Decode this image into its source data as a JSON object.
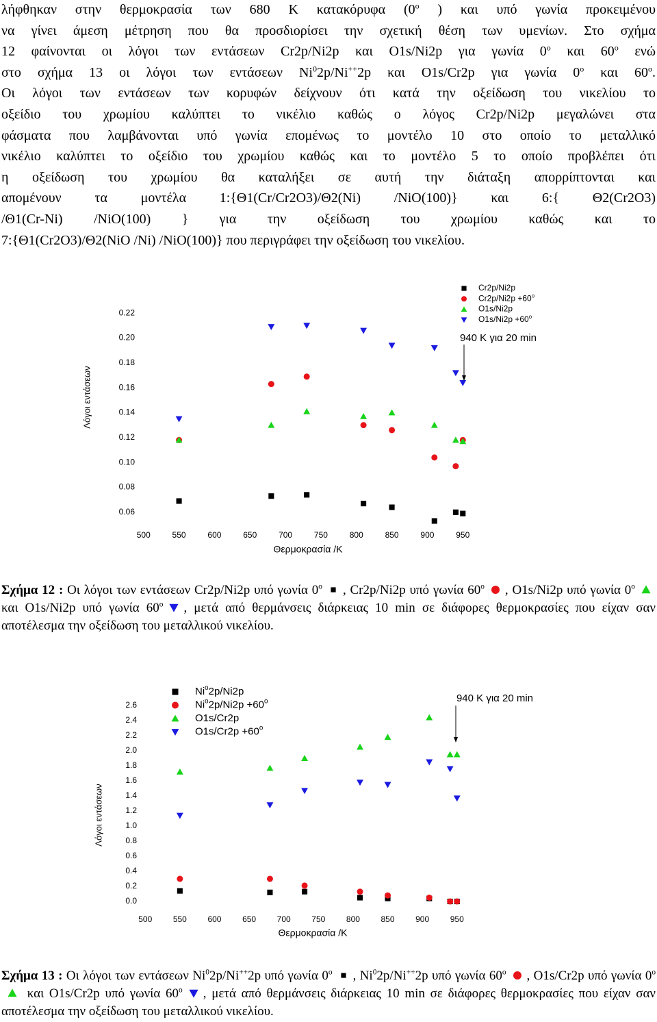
{
  "paragraph": [
    [
      "λήφθηκαν στην θερμοκρασία των 680 K κατακόρυφα (0",
      "o",
      " ) και υπό γωνία προκειμένου"
    ],
    [
      "να γίνει άμεση μέτρηση που θα προσδιορίσει την σχετική θέση των υμενίων. Στο σχήμα"
    ],
    [
      "12 φαίνονται οι λόγοι των εντάσεων Cr2p/Ni2p και O1s/Ni2p για γωνία 0",
      "o",
      " και 60",
      "o",
      " ενώ"
    ],
    [
      "στο σχήμα 13 οι λόγοι των εντάσεων Ni",
      "0",
      "2p/Ni",
      "++",
      "2p και O1s/Cr2p για γωνία 0",
      "o",
      " και 60",
      "o",
      "."
    ],
    [
      "Οι λόγοι των εντάσεων των κορυφών δείχνουν ότι κατά την οξείδωση του νικελίου το"
    ],
    [
      "οξείδιο του χρωμίου καλύπτει το νικέλιο καθώς ο λόγος Cr2p/Ni2p μεγαλώνει στα"
    ],
    [
      "φάσματα που λαμβάνονται υπό γωνία επομένως το μοντέλο 10 στο οποίο το μεταλλικό"
    ],
    [
      "νικέλιο καλύπτει το οξείδιο του χρωμίου καθώς και το μοντέλο 5 το οποίο προβλέπει ότι"
    ],
    [
      "η οξείδωση του χρωμίου θα καταλήξει σε αυτή την διάταξη απορρίπτονται και"
    ],
    [
      "απομένουν τα μοντέλα 1:{Θ1(Cr/Cr2O3)/Θ2(Ni) /NiO(100)} και 6:{ Θ2(Cr2O3)"
    ],
    [
      "/Θ1(Cr-Ni) /NiO(100) } για την οξείδωση του χρωμίου καθώς και το"
    ],
    [
      "7:{Θ1(Cr2O3)/Θ2(NiO /Ni) /NiO(100)} που περιγράφει την οξείδωση του νικελίου."
    ]
  ],
  "chart_data": [
    {
      "type": "scatter",
      "x_label": "Θερμοκρασία /K",
      "y_label": "Λόγοι εντάσεων",
      "annotation": "940 K για 20 min",
      "x": [
        550,
        680,
        730,
        810,
        850,
        910,
        940,
        950
      ],
      "series": [
        {
          "name": [
            "Cr2p/Ni2p"
          ],
          "marker": "square",
          "color": "#000000",
          "values": [
            0.069,
            0.073,
            0.074,
            0.067,
            0.064,
            0.053,
            0.06,
            0.059
          ]
        },
        {
          "name": [
            "Cr2p/Ni2p +60",
            "o"
          ],
          "marker": "circle",
          "color": "#e8141a",
          "values": [
            0.118,
            0.163,
            0.169,
            0.13,
            0.126,
            0.104,
            0.097,
            0.118
          ]
        },
        {
          "name": [
            "O1s/Ni2p"
          ],
          "marker": "triangle-up",
          "color": "#19d419",
          "values": [
            0.118,
            0.13,
            0.141,
            0.137,
            0.14,
            0.13,
            0.118,
            0.117
          ]
        },
        {
          "name": [
            "O1s/Ni2p +60",
            "o"
          ],
          "marker": "triangle-down",
          "color": "#1a1ae0",
          "values": [
            0.135,
            0.209,
            0.21,
            0.206,
            0.194,
            0.192,
            0.172,
            0.164
          ]
        }
      ],
      "xlim": [
        480,
        970
      ],
      "ylim": [
        0.05,
        0.225
      ],
      "xticks": [
        500,
        550,
        600,
        650,
        700,
        750,
        800,
        850,
        900,
        950
      ],
      "yticks": [
        0.06,
        0.08,
        {
          "value": 0.1,
          "label": "0.10"
        },
        0.12,
        0.14,
        0.16,
        0.18,
        {
          "value": 0.2,
          "label": "0.20"
        },
        0.22
      ],
      "grid": false
    },
    {
      "type": "scatter",
      "x_label": "Θερμοκρασία /K",
      "y_label": "Λόγοι εντάσεων",
      "annotation": "940 K για 20 min",
      "x": [
        550,
        680,
        730,
        810,
        850,
        910,
        940,
        950
      ],
      "series": [
        {
          "name": [
            "Ni",
            "o",
            "2p/Ni2p"
          ],
          "marker": "square",
          "color": "#000000",
          "values": [
            0.14,
            0.12,
            0.13,
            0.05,
            0.04,
            0.04,
            0.0,
            0.0
          ]
        },
        {
          "name": [
            "Ni",
            "o",
            "2p/Ni2p +60",
            "o"
          ],
          "marker": "circle",
          "color": "#e8141a",
          "values": [
            0.3,
            0.3,
            0.21,
            0.13,
            0.08,
            0.05,
            0.0,
            0.0
          ]
        },
        {
          "name": [
            "O1s/Cr2p"
          ],
          "marker": "triangle-up",
          "color": "#19d419",
          "values": [
            1.72,
            1.77,
            1.9,
            2.05,
            2.18,
            2.44,
            1.95,
            1.95
          ]
        },
        {
          "name": [
            "O1s/Cr2p  +60",
            "o"
          ],
          "marker": "triangle-down",
          "color": "#1a1ae0",
          "values": [
            1.14,
            1.28,
            1.47,
            1.58,
            1.55,
            1.85,
            1.76,
            1.37
          ]
        }
      ],
      "xlim": [
        480,
        970
      ],
      "ylim": [
        -0.1,
        2.75
      ],
      "xticks": [
        500,
        550,
        600,
        650,
        700,
        750,
        800,
        850,
        900,
        950
      ],
      "yticks": [
        {
          "value": 0,
          "label": "0.0"
        },
        0.2,
        0.4,
        0.6,
        0.8,
        {
          "value": 1,
          "label": "1.0"
        },
        1.2,
        1.4,
        1.6,
        1.8,
        {
          "value": 2,
          "label": "2.0"
        },
        2.2,
        2.4,
        2.6
      ],
      "grid": false
    }
  ],
  "captions": [
    {
      "label": "Σχήμα 12 :",
      "parts": [
        [
          " Οι λόγοι των εντάσεων Cr2p/Ni2p υπό γωνία 0",
          "o"
        ],
        [
          ", Cr2p/Ni2p υπό γωνία 60",
          "o"
        ],
        [
          ",   O1s/Ni2p υπό γωνία 0",
          "o"
        ],
        [
          " και O1s/Ni2p υπό γωνία 60",
          "o"
        ],
        [
          ", μετά από θερμάνσεις διάρκειας 10 min σε διάφορες θερμοκρασίες που είχαν σαν αποτέλεσμα την οξείδωση του μεταλλικού νικελίου."
        ]
      ]
    },
    {
      "label": "Σχήμα 13 :",
      "parts": [
        [
          " Οι λόγοι των εντάσεων Ni",
          "0",
          "2p/Ni",
          "++",
          "2p υπό γωνία 0",
          "o"
        ],
        [
          ", Ni",
          "0",
          "2p/Ni",
          "++",
          "2p υπό γωνία 60",
          "o"
        ],
        [
          ", O1s/Cr2p υπό γωνία 0",
          "o"
        ],
        [
          " και O1s/Cr2p υπό γωνία 60",
          "o"
        ],
        [
          ", μετά από θερμάνσεις διάρκειας 10 min σε διάφορες θερμοκρασίες που είχαν σαν αποτέλεσμα την οξείδωση του μεταλλικού νικελίου."
        ]
      ]
    }
  ]
}
